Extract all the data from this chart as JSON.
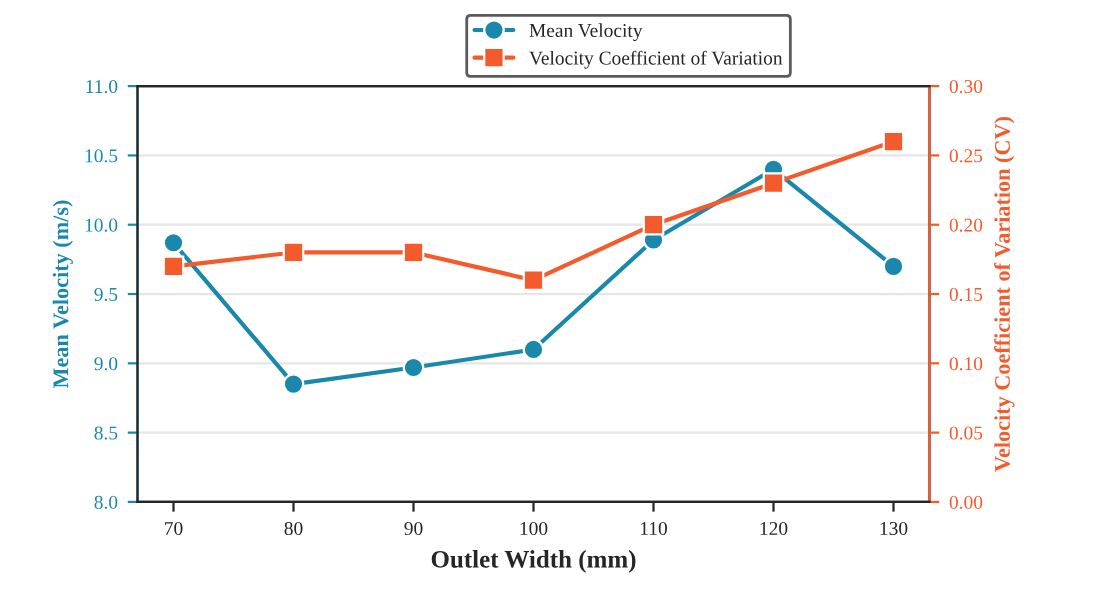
{
  "chart_data": {
    "type": "line",
    "xlabel": "Outlet Width (mm)",
    "ylabel": "Mean Velocity (m/s)",
    "y2label": "Velocity Coefficient of Variation (CV)",
    "x": [
      70,
      80,
      90,
      100,
      110,
      120,
      130
    ],
    "series": [
      {
        "name": "Mean Velocity",
        "color": "#1a88ad",
        "marker": "circle",
        "values": [
          9.87,
          8.85,
          8.97,
          9.1,
          9.89,
          10.4,
          9.7
        ]
      },
      {
        "name": "Velocity Coefficient of Variation",
        "color": "#f35b2c",
        "marker": "square",
        "axis": "y2",
        "values": [
          0.17,
          0.18,
          0.18,
          0.16,
          0.2,
          0.23,
          0.26
        ]
      }
    ],
    "xlim": [
      67,
      133
    ],
    "xticks": [
      70,
      80,
      90,
      100,
      110,
      120,
      130
    ],
    "ylim": [
      8.0,
      11.0
    ],
    "yticks": [
      {
        "value": 8.0,
        "label": "8.0"
      },
      {
        "value": 8.5,
        "label": "8.5"
      },
      {
        "value": 9.0,
        "label": "9.0"
      },
      {
        "value": 9.5,
        "label": "9.5"
      },
      {
        "value": 10.0,
        "label": "10.0"
      },
      {
        "value": 10.5,
        "label": "10.5"
      },
      {
        "value": 11.0,
        "label": "11.0"
      }
    ],
    "y2lim": [
      0.0,
      0.3
    ],
    "y2ticks": [
      {
        "value": 0.0,
        "label": "0.00"
      },
      {
        "value": 0.05,
        "label": "0.05"
      },
      {
        "value": 0.1,
        "label": "0.10"
      },
      {
        "value": 0.15,
        "label": "0.15"
      },
      {
        "value": 0.2,
        "label": "0.20"
      },
      {
        "value": 0.25,
        "label": "0.25"
      },
      {
        "value": 0.3,
        "label": "0.30"
      }
    ],
    "grid": "y",
    "legend": "top",
    "line_style": "solid"
  }
}
